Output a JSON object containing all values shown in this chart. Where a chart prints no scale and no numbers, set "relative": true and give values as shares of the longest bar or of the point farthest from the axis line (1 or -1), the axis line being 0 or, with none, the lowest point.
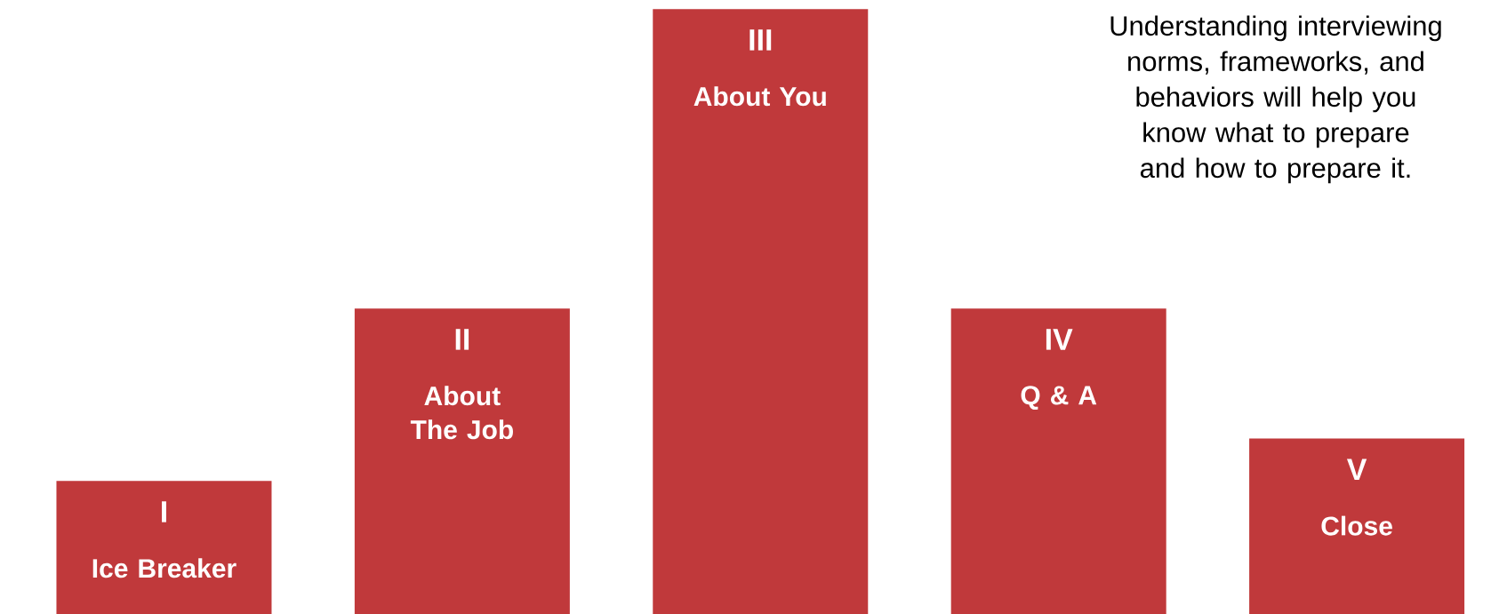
{
  "chart_data": {
    "type": "bar",
    "relative": true,
    "categories": [
      "Ice Breaker",
      "About The Job",
      "About You",
      "Q & A",
      "Close"
    ],
    "values": [
      0.22,
      0.505,
      1,
      0.505,
      0.29
    ],
    "color": "#c0393b",
    "annotations": [
      {
        "text": "I",
        "x": "Ice Breaker",
        "y": 0.22
      },
      {
        "text": "II",
        "x": "About The Job",
        "y": 0.505
      },
      {
        "text": "III",
        "x": "About You",
        "y": 1
      },
      {
        "text": "IV",
        "x": "Q & A",
        "y": 0.505
      },
      {
        "text": "V",
        "x": "Close",
        "y": 0.29
      },
      "Understanding interviewing norms, frameworks, and behaviors will help you know what to prepare and how to prepare it."
    ]
  }
}
